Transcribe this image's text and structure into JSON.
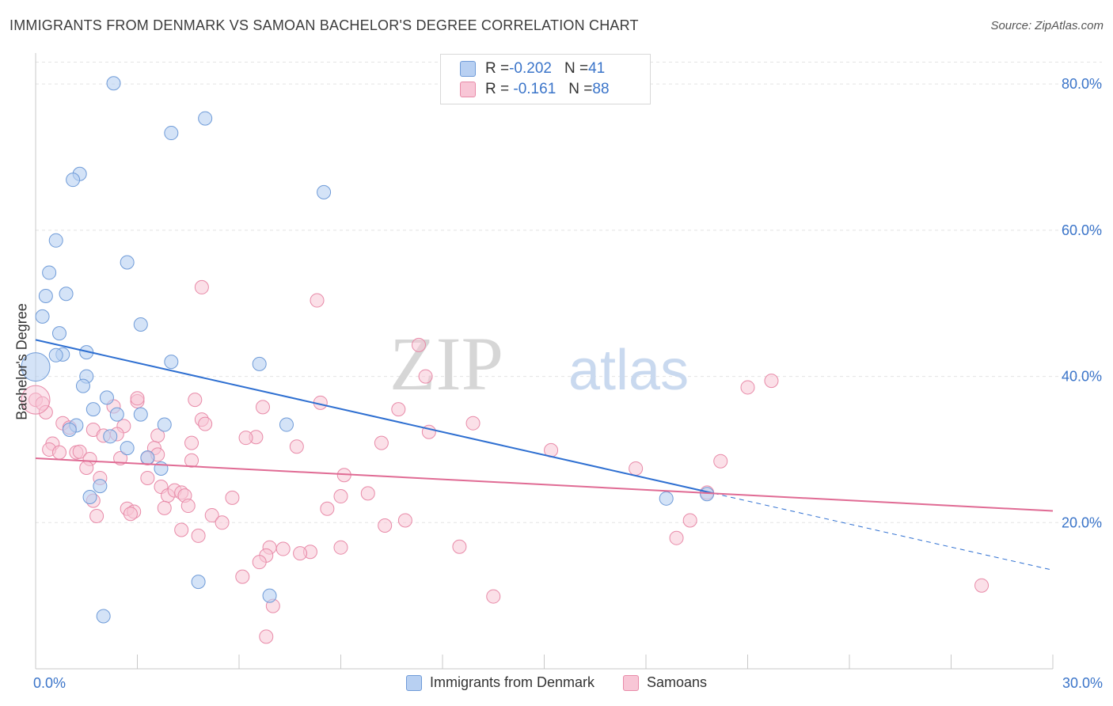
{
  "title": "IMMIGRANTS FROM DENMARK VS SAMOAN BACHELOR'S DEGREE CORRELATION CHART",
  "source": "Source: ZipAtlas.com",
  "watermark": {
    "zip": "ZIP",
    "atlas": "atlas"
  },
  "legend": {
    "rows": [
      {
        "r_label": "R = ",
        "r_value": "-0.202",
        "n_label": "N = ",
        "n_value": "41"
      },
      {
        "r_label": "R = ",
        "r_value": " -0.161",
        "n_label": "N = ",
        "n_value": "88"
      }
    ]
  },
  "colors": {
    "denmark_fill": "#b8d0f2",
    "denmark_stroke": "#6f9bd8",
    "denmark_line": "#2e6fd1",
    "samoan_fill": "#f8c6d6",
    "samoan_stroke": "#e88aa8",
    "samoan_line": "#e06b94",
    "axis_text": "#3a74c9",
    "grid": "#e4e4e4"
  },
  "chart_data": {
    "type": "scatter",
    "xlabel": "",
    "ylabel": "Bachelor's Degree",
    "xlim": [
      0,
      30
    ],
    "ylim": [
      0,
      85
    ],
    "x_tick_labels": [
      "0.0%",
      "30.0%"
    ],
    "y_ticks": [
      20,
      40,
      60,
      80
    ],
    "y_tick_labels": [
      "20.0%",
      "40.0%",
      "60.0%",
      "80.0%"
    ],
    "grid": true,
    "legend_position": "bottom",
    "series": [
      {
        "name": "Immigrants from Denmark",
        "R": -0.202,
        "N": 41,
        "trend": {
          "x0": 0,
          "y0": 45.0,
          "x1": 20.0,
          "y1": 24.0,
          "dash_to_x": 30,
          "dash_to_y": 13.5
        },
        "points": [
          [
            2.3,
            80.1
          ],
          [
            5.0,
            75.3
          ],
          [
            4.0,
            73.3
          ],
          [
            1.3,
            67.7
          ],
          [
            1.1,
            66.9
          ],
          [
            8.5,
            65.2
          ],
          [
            0.6,
            58.6
          ],
          [
            2.7,
            55.6
          ],
          [
            0.4,
            54.2
          ],
          [
            0.9,
            51.3
          ],
          [
            0.3,
            51.0
          ],
          [
            0.2,
            48.2
          ],
          [
            3.1,
            47.1
          ],
          [
            0.7,
            45.9
          ],
          [
            0.8,
            43.0
          ],
          [
            0.6,
            42.9
          ],
          [
            1.5,
            43.3
          ],
          [
            4.0,
            42.0
          ],
          [
            6.6,
            41.7
          ],
          [
            0.0,
            41.3
          ],
          [
            1.5,
            40.0
          ],
          [
            1.4,
            38.7
          ],
          [
            2.1,
            37.1
          ],
          [
            1.7,
            35.5
          ],
          [
            2.4,
            34.8
          ],
          [
            3.1,
            34.8
          ],
          [
            3.8,
            33.4
          ],
          [
            1.2,
            33.3
          ],
          [
            7.4,
            33.4
          ],
          [
            1.0,
            32.7
          ],
          [
            2.2,
            31.8
          ],
          [
            2.7,
            30.2
          ],
          [
            3.3,
            28.9
          ],
          [
            3.7,
            27.4
          ],
          [
            1.9,
            25.0
          ],
          [
            1.6,
            23.5
          ],
          [
            18.6,
            23.3
          ],
          [
            4.8,
            11.9
          ],
          [
            6.9,
            10.0
          ],
          [
            2.0,
            7.2
          ],
          [
            19.8,
            23.9
          ]
        ]
      },
      {
        "name": "Samoans",
        "R": -0.161,
        "N": 88,
        "trend": {
          "x0": 0,
          "y0": 28.8,
          "x1": 30,
          "y1": 21.6
        },
        "points": [
          [
            4.9,
            52.2
          ],
          [
            8.3,
            50.4
          ],
          [
            11.3,
            44.3
          ],
          [
            11.5,
            40.0
          ],
          [
            21.7,
            39.4
          ],
          [
            21.0,
            38.5
          ],
          [
            0.0,
            36.8
          ],
          [
            0.2,
            36.3
          ],
          [
            3.0,
            36.6
          ],
          [
            8.4,
            36.4
          ],
          [
            2.3,
            35.9
          ],
          [
            6.7,
            35.8
          ],
          [
            10.7,
            35.5
          ],
          [
            0.3,
            35.1
          ],
          [
            4.9,
            34.1
          ],
          [
            5.0,
            33.5
          ],
          [
            12.9,
            33.6
          ],
          [
            0.8,
            33.6
          ],
          [
            2.6,
            33.2
          ],
          [
            1.0,
            33.0
          ],
          [
            1.7,
            32.7
          ],
          [
            11.6,
            32.4
          ],
          [
            2.4,
            32.1
          ],
          [
            3.6,
            31.9
          ],
          [
            2.0,
            31.9
          ],
          [
            6.5,
            31.7
          ],
          [
            6.2,
            31.6
          ],
          [
            4.6,
            30.9
          ],
          [
            0.5,
            30.8
          ],
          [
            10.2,
            30.9
          ],
          [
            7.7,
            30.4
          ],
          [
            3.5,
            30.2
          ],
          [
            0.4,
            30.0
          ],
          [
            0.7,
            29.6
          ],
          [
            1.2,
            29.6
          ],
          [
            1.3,
            29.7
          ],
          [
            15.2,
            29.9
          ],
          [
            2.5,
            28.8
          ],
          [
            1.6,
            28.7
          ],
          [
            3.3,
            28.8
          ],
          [
            3.6,
            29.3
          ],
          [
            4.6,
            28.5
          ],
          [
            20.2,
            28.4
          ],
          [
            1.5,
            27.5
          ],
          [
            17.7,
            27.4
          ],
          [
            9.1,
            26.5
          ],
          [
            3.3,
            26.1
          ],
          [
            1.9,
            26.1
          ],
          [
            3.7,
            24.9
          ],
          [
            3.9,
            23.7
          ],
          [
            4.1,
            24.4
          ],
          [
            4.3,
            24.1
          ],
          [
            4.4,
            23.7
          ],
          [
            9.8,
            24.0
          ],
          [
            9.0,
            23.6
          ],
          [
            5.8,
            23.4
          ],
          [
            1.7,
            23.0
          ],
          [
            19.8,
            24.1
          ],
          [
            4.5,
            22.3
          ],
          [
            8.6,
            21.9
          ],
          [
            2.7,
            21.9
          ],
          [
            2.9,
            21.5
          ],
          [
            5.2,
            21.0
          ],
          [
            1.8,
            20.9
          ],
          [
            10.9,
            20.3
          ],
          [
            19.3,
            20.3
          ],
          [
            5.5,
            20.0
          ],
          [
            10.3,
            19.6
          ],
          [
            4.3,
            19.0
          ],
          [
            4.8,
            18.2
          ],
          [
            18.9,
            17.9
          ],
          [
            6.9,
            16.6
          ],
          [
            9.0,
            16.6
          ],
          [
            12.5,
            16.7
          ],
          [
            7.3,
            16.4
          ],
          [
            8.1,
            16.0
          ],
          [
            7.8,
            15.8
          ],
          [
            6.8,
            15.5
          ],
          [
            6.6,
            14.6
          ],
          [
            6.1,
            12.6
          ],
          [
            13.5,
            9.9
          ],
          [
            27.9,
            11.4
          ],
          [
            7.0,
            8.6
          ],
          [
            6.8,
            4.4
          ],
          [
            4.7,
            36.8
          ],
          [
            3.0,
            37.0
          ],
          [
            3.8,
            22.0
          ],
          [
            2.8,
            21.2
          ]
        ]
      }
    ]
  },
  "bottom_legend": [
    "Immigrants from Denmark",
    "Samoans"
  ]
}
